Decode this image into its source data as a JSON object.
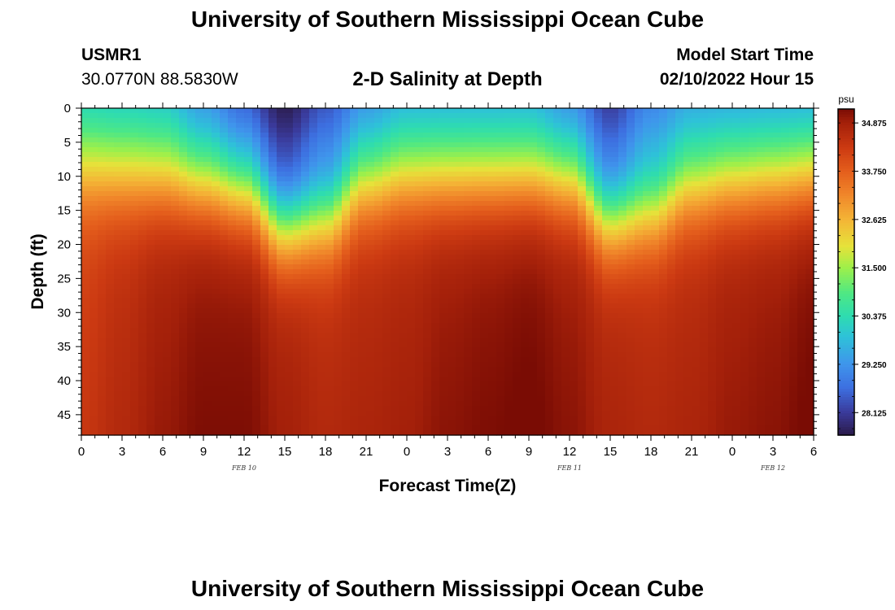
{
  "header": {
    "title": "University of Southern Mississippi Ocean Cube",
    "station_id": "USMR1",
    "station_coords": "30.0770N  88.5830W",
    "plot_title": "2-D Salinity at Depth",
    "model_label": "Model Start Time",
    "model_time": "02/10/2022 Hour 15"
  },
  "footer": {
    "title": "University of Southern Mississippi Ocean Cube"
  },
  "chart_data": {
    "type": "heatmap",
    "title": "2-D Salinity at Depth",
    "xlabel": "Forecast Time(Z)",
    "ylabel": "Depth (ft)",
    "x_range_hours": [
      0,
      54
    ],
    "y_range_ft": [
      0,
      48
    ],
    "x_tick_labels": [
      "0",
      "3",
      "6",
      "9",
      "12",
      "15",
      "18",
      "21",
      "0",
      "3",
      "6",
      "9",
      "12",
      "15",
      "18",
      "21",
      "0",
      "3",
      "6"
    ],
    "y_tick_labels": [
      "0",
      "5",
      "10",
      "15",
      "20",
      "25",
      "30",
      "35",
      "40",
      "45"
    ],
    "date_labels": [
      {
        "hour": 12,
        "text": "FEB 10"
      },
      {
        "hour": 36,
        "text": "FEB 11"
      },
      {
        "hour": 51,
        "text": "FEB 12"
      }
    ],
    "colorbar": {
      "unit": "psu",
      "min": 27.6,
      "max": 35.2,
      "tick_labels": [
        "34.875",
        "33.750",
        "32.625",
        "31.500",
        "30.375",
        "29.250",
        "28.125"
      ]
    },
    "colormap_stops": [
      {
        "value": 27.6,
        "color": "#2a1a4a"
      },
      {
        "value": 28.125,
        "color": "#3a3a9a"
      },
      {
        "value": 28.7,
        "color": "#3d6fe0"
      },
      {
        "value": 29.25,
        "color": "#3f95ec"
      },
      {
        "value": 29.9,
        "color": "#2ec2d8"
      },
      {
        "value": 30.375,
        "color": "#2edcb0"
      },
      {
        "value": 30.9,
        "color": "#4ee884"
      },
      {
        "value": 31.5,
        "color": "#9ef04a"
      },
      {
        "value": 32.0,
        "color": "#e6e23a"
      },
      {
        "value": 32.625,
        "color": "#f4b436"
      },
      {
        "value": 33.2,
        "color": "#f0862a"
      },
      {
        "value": 33.75,
        "color": "#e45e1c"
      },
      {
        "value": 34.3,
        "color": "#cc3a12"
      },
      {
        "value": 34.875,
        "color": "#a4200a"
      },
      {
        "value": 35.2,
        "color": "#7a0c04"
      }
    ],
    "salinity_model": {
      "x_hours": [
        0,
        3,
        6,
        9,
        12,
        15,
        18,
        21,
        24,
        27,
        30,
        33,
        36,
        39,
        42,
        45,
        48,
        51,
        54
      ],
      "surface_psu": [
        30.2,
        30.1,
        30.0,
        29.3,
        28.6,
        27.8,
        28.6,
        29.3,
        29.7,
        29.7,
        29.7,
        29.7,
        29.2,
        28.3,
        29.2,
        29.6,
        29.6,
        29.6,
        29.6
      ],
      "halocline_depth_ft": [
        9,
        9.5,
        10,
        11,
        12,
        17,
        16,
        11,
        10,
        10,
        10,
        10,
        10.5,
        16,
        15,
        11.5,
        10.5,
        10,
        9.5
      ],
      "bottom_psu": [
        34.2,
        34.5,
        34.8,
        35.0,
        35.0,
        34.7,
        34.5,
        34.6,
        34.7,
        34.9,
        35.0,
        35.1,
        34.9,
        34.6,
        34.5,
        34.6,
        34.8,
        34.9,
        35.1
      ]
    }
  }
}
